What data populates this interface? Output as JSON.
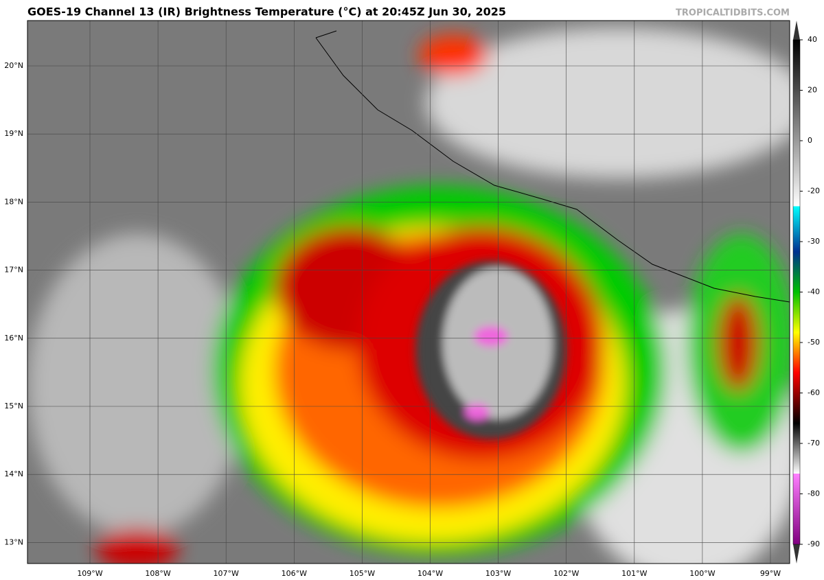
{
  "header": {
    "title": "GOES-19 Channel 13 (IR) Brightness Temperature (°C) at 20:45Z Jun 30, 2025",
    "credit": "TROPICALTIDBITS.COM"
  },
  "map": {
    "lat_labels": [
      "20°N",
      "19°N",
      "18°N",
      "17°N",
      "16°N",
      "15°N",
      "14°N",
      "13°N"
    ],
    "lon_labels": [
      "109°W",
      "108°W",
      "107°W",
      "106°W",
      "105°W",
      "104°W",
      "103°W",
      "102°W",
      "101°W",
      "100°W",
      "99°W"
    ]
  },
  "colorbar": {
    "ticks": [
      40,
      20,
      0,
      -20,
      -30,
      -40,
      -50,
      -60,
      -70,
      -80,
      -90
    ]
  }
}
